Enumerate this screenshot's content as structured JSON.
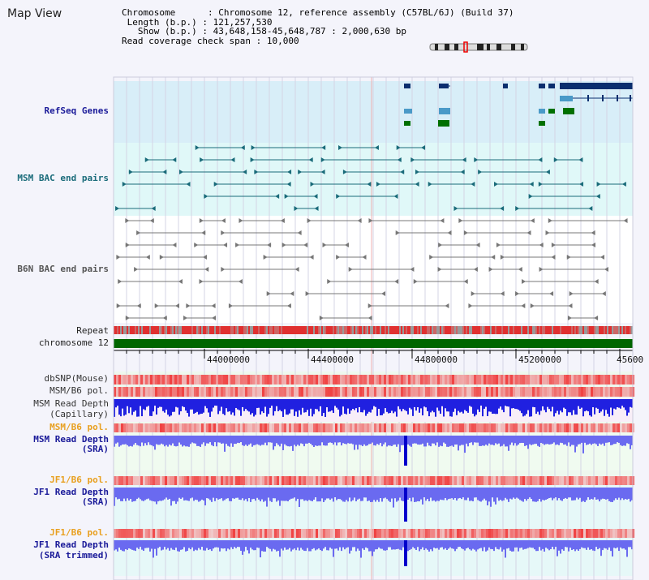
{
  "title": "Map View",
  "info": {
    "chromosome_key": "Chromosome",
    "chromosome_val": "Chromosome 12, reference assembly (C57BL/6J) (Build 37)",
    "length_key": "Length (b.p.)",
    "length_val": "121,257,530",
    "show_key": "Show (b.p.)",
    "show_val": "43,648,158-45,648,787 : 2,000,630 bp",
    "coverage_key": "Read coverage check span",
    "coverage_val": "10,000"
  },
  "tracks": {
    "refseq": "RefSeq Genes",
    "msm_bac": "MSM BAC end pairs",
    "b6n_bac": "B6N BAC end pairs",
    "repeat": "Repeat",
    "chromosome": "chromosome 12",
    "dbsnp": "dbSNP(Mouse)",
    "msm_b6_pol_1": "MSM/B6 pol.",
    "msm_read_depth_cap_1": "MSM Read Depth",
    "msm_read_depth_cap_2": "(Capillary)",
    "msm_b6_pol_2": "MSM/B6 pol.",
    "msm_read_depth_sra_1": "MSM Read Depth",
    "msm_read_depth_sra_2": "(SRA)",
    "jf1_b6_pol_1": "JF1/B6 pol.",
    "jf1_read_depth_1": "JF1 Read Depth",
    "jf1_read_depth_2": "(SRA)",
    "jf1_b6_pol_2": "JF1/B6 pol.",
    "jf1_read_depth_trim_1": "JF1 Read Depth",
    "jf1_read_depth_trim_2": "(SRA trimmed)"
  },
  "axis_ticks": [
    "44000000",
    "44400000",
    "44800000",
    "45200000",
    "45600"
  ],
  "colors": {
    "refseq_bg": "#d8eef8",
    "msm_bg": "#e0f8f8",
    "b6n_bg": "#ffffff",
    "chromosome_bar": "#006600",
    "gene_dark": "#0a2e6e",
    "gene_mid": "#4a9ac8",
    "gene_green": "#007000",
    "bac_teal": "#1a6b7a",
    "bac_gray": "#777777",
    "depth_blue": "#2020e0",
    "depth_light": "#6a6af0",
    "pol_red": "#e04040"
  }
}
